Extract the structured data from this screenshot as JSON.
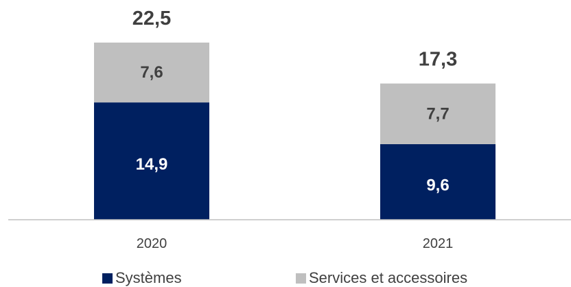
{
  "chart_data": {
    "type": "bar",
    "stacked": true,
    "categories": [
      "2020",
      "2021"
    ],
    "series": [
      {
        "name": "Systèmes",
        "values": [
          "14,9",
          "9,6"
        ],
        "numeric": [
          14.9,
          9.6
        ],
        "color": "#002060"
      },
      {
        "name": "Services et accessoires",
        "values": [
          "7,6",
          "7,7"
        ],
        "numeric": [
          7.6,
          7.7
        ],
        "color": "#bfbfbf"
      }
    ],
    "totals": [
      "22,5",
      "17,3"
    ],
    "totals_numeric": [
      22.5,
      17.3
    ],
    "title": "",
    "xlabel": "",
    "ylabel": "",
    "ylim": [
      0,
      22.5
    ],
    "grid": false,
    "legend_position": "bottom"
  },
  "colors": {
    "axis": "#bfbfbf",
    "category_text": "#404040",
    "total_text": "#404040",
    "label_on_dark": "#ffffff",
    "label_on_light": "#404040"
  }
}
